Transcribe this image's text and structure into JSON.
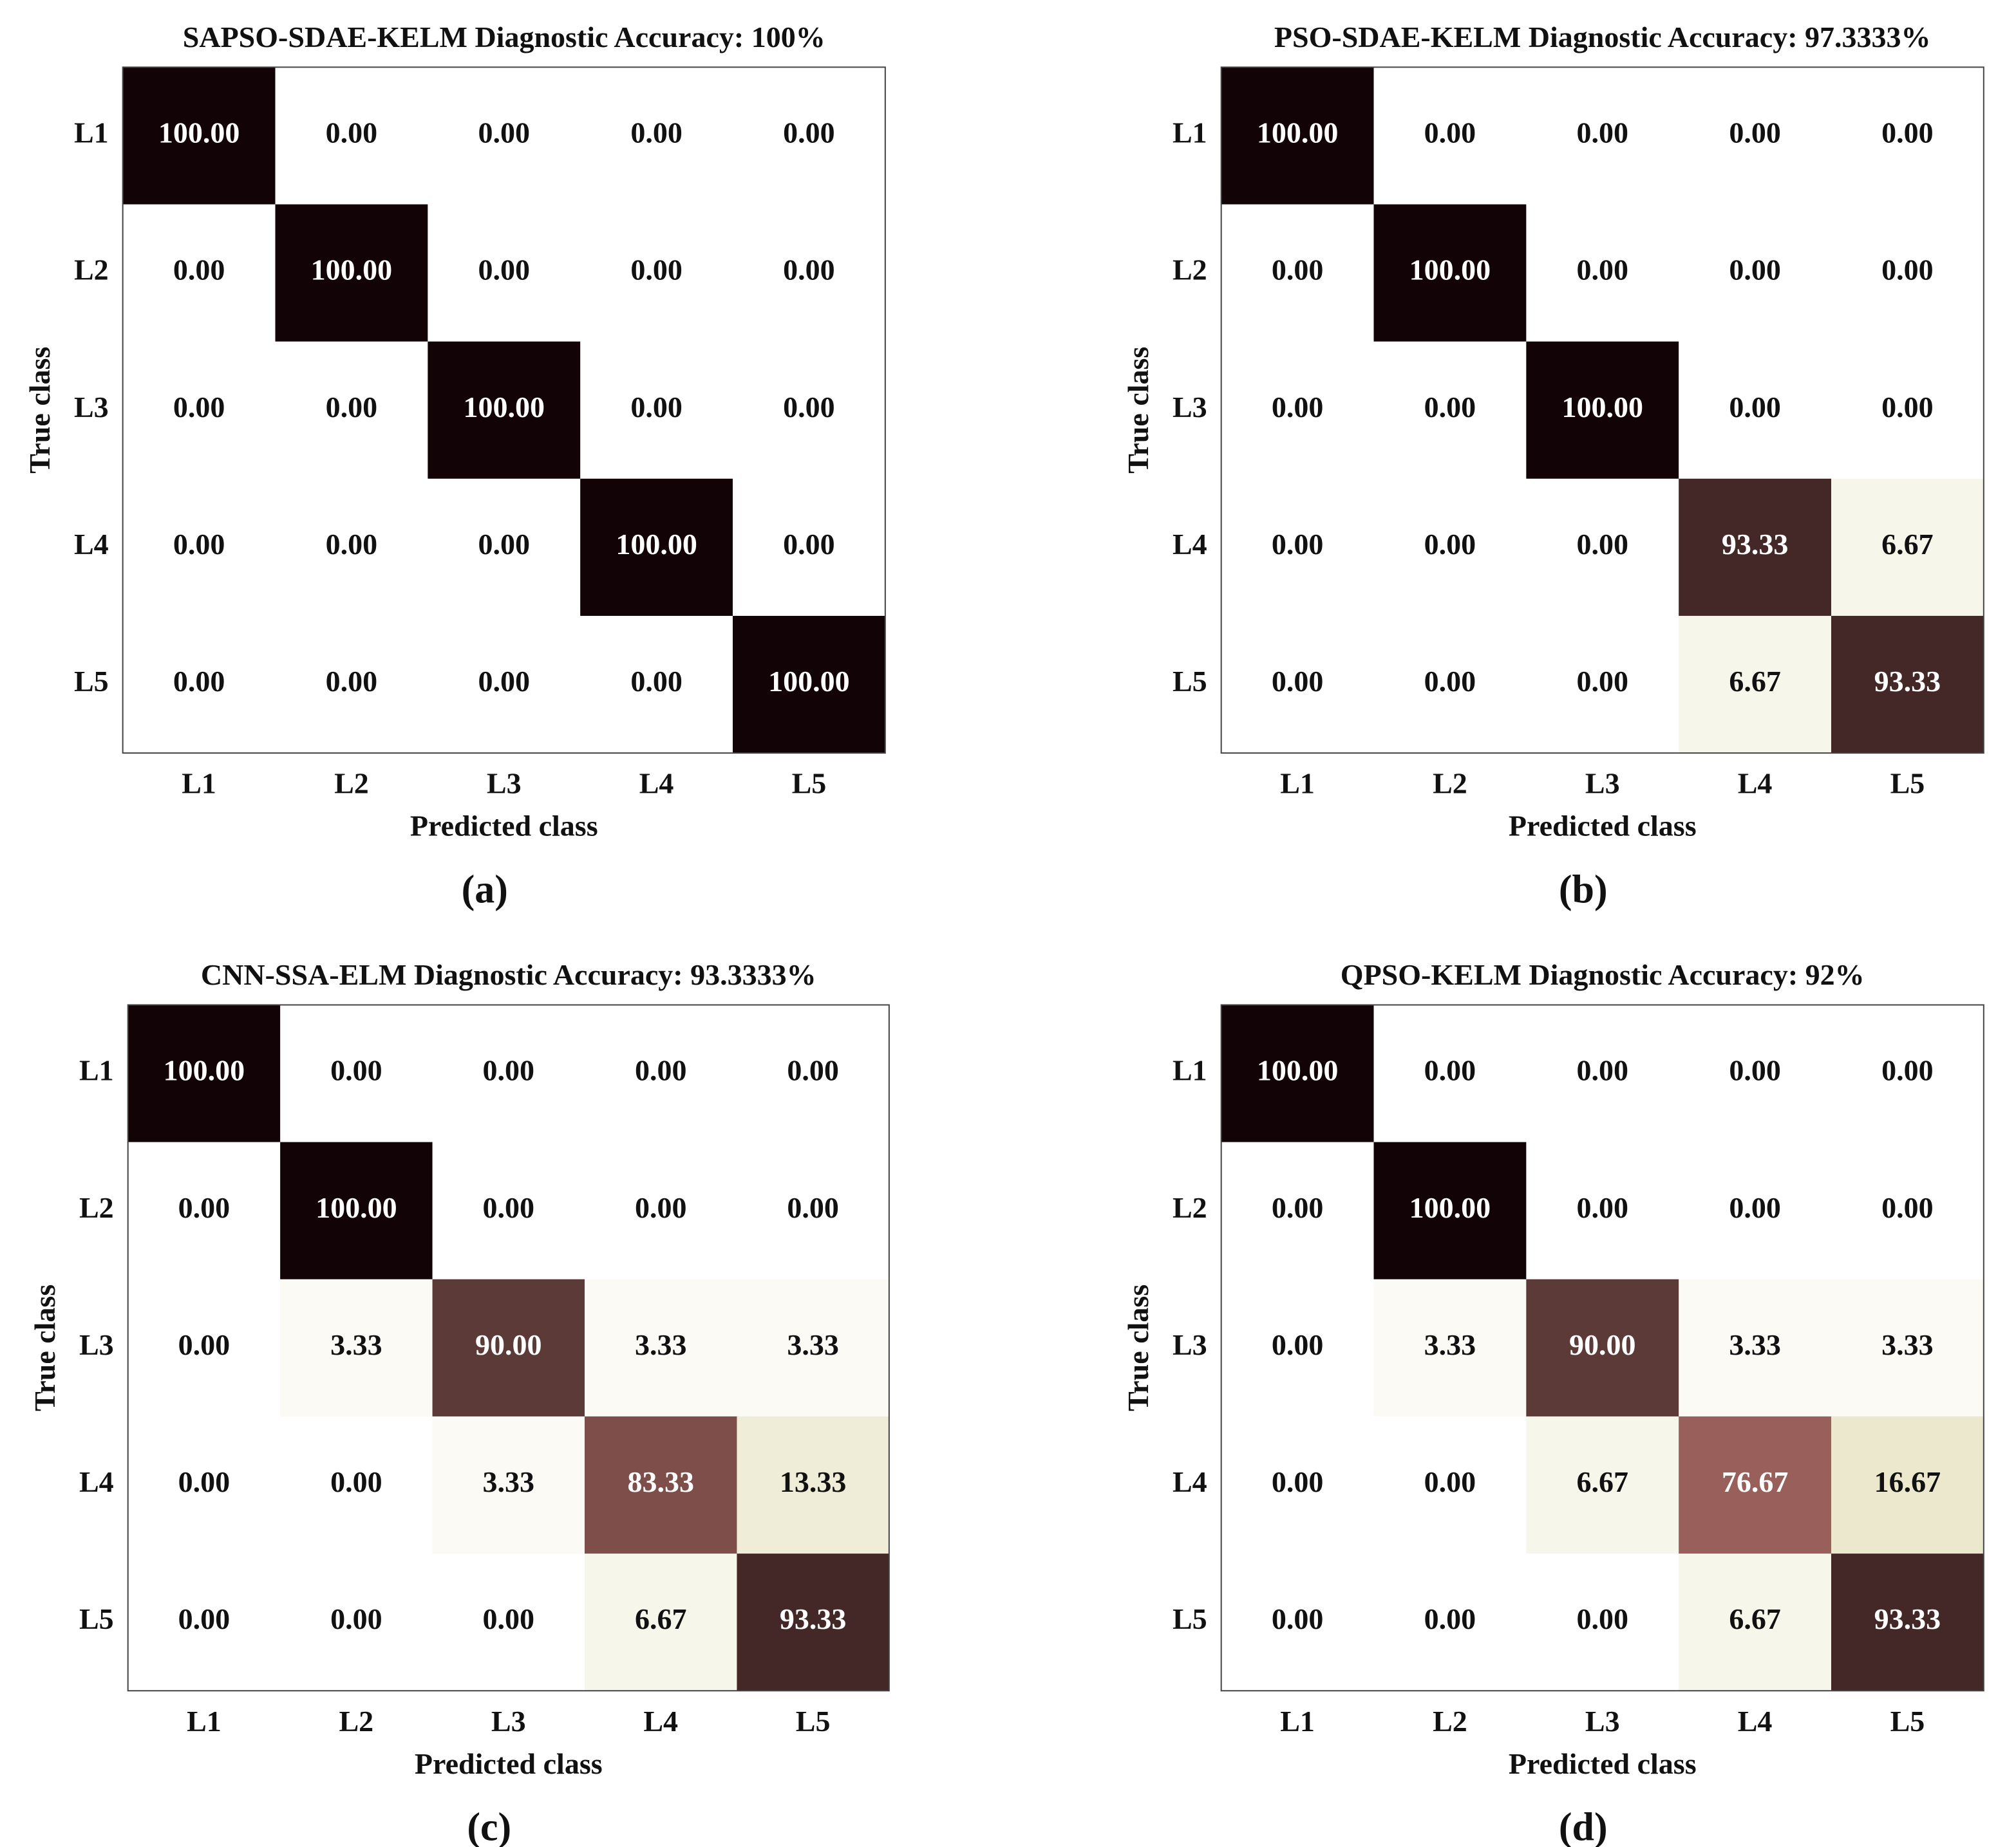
{
  "chart_data": [
    {
      "type": "heatmap",
      "title": "SAPSO-SDAE-KELM Diagnostic Accuracy: 100%",
      "caption": "(a)",
      "xlabel": "Predicted class",
      "ylabel": "True class",
      "x_categories": [
        "L1",
        "L2",
        "L3",
        "L4",
        "L5"
      ],
      "y_categories": [
        "L1",
        "L2",
        "L3",
        "L4",
        "L5"
      ],
      "values": [
        [
          100,
          0,
          0,
          0,
          0
        ],
        [
          0,
          100,
          0,
          0,
          0
        ],
        [
          0,
          0,
          100,
          0,
          0
        ],
        [
          0,
          0,
          0,
          100,
          0
        ],
        [
          0,
          0,
          0,
          0,
          100
        ]
      ],
      "value_labels": [
        [
          "100.00",
          "0.00",
          "0.00",
          "0.00",
          "0.00"
        ],
        [
          "0.00",
          "100.00",
          "0.00",
          "0.00",
          "0.00"
        ],
        [
          "0.00",
          "0.00",
          "100.00",
          "0.00",
          "0.00"
        ],
        [
          "0.00",
          "0.00",
          "0.00",
          "100.00",
          "0.00"
        ],
        [
          "0.00",
          "0.00",
          "0.00",
          "0.00",
          "100.00"
        ]
      ],
      "clim": [
        0,
        100
      ],
      "colormap": [
        "#ffffff",
        "#f2f1df",
        "#e8e4c6",
        "#dccfae",
        "#d2b79d",
        "#c99c8c",
        "#bd8478",
        "#b0706a",
        "#8e5854",
        "#5c3a37",
        "#120406"
      ]
    },
    {
      "type": "heatmap",
      "title": "PSO-SDAE-KELM Diagnostic Accuracy: 97.3333%",
      "caption": "(b)",
      "xlabel": "Predicted class",
      "ylabel": "True class",
      "x_categories": [
        "L1",
        "L2",
        "L3",
        "L4",
        "L5"
      ],
      "y_categories": [
        "L1",
        "L2",
        "L3",
        "L4",
        "L5"
      ],
      "values": [
        [
          100,
          0,
          0,
          0,
          0
        ],
        [
          0,
          100,
          0,
          0,
          0
        ],
        [
          0,
          0,
          100,
          0,
          0
        ],
        [
          0,
          0,
          0,
          93.33,
          6.67
        ],
        [
          0,
          0,
          0,
          6.67,
          93.33
        ]
      ],
      "value_labels": [
        [
          "100.00",
          "0.00",
          "0.00",
          "0.00",
          "0.00"
        ],
        [
          "0.00",
          "100.00",
          "0.00",
          "0.00",
          "0.00"
        ],
        [
          "0.00",
          "0.00",
          "100.00",
          "0.00",
          "0.00"
        ],
        [
          "0.00",
          "0.00",
          "0.00",
          "93.33",
          "6.67"
        ],
        [
          "0.00",
          "0.00",
          "0.00",
          "6.67",
          "93.33"
        ]
      ],
      "clim": [
        0,
        100
      ],
      "colormap": [
        "#ffffff",
        "#f2f1df",
        "#e8e4c6",
        "#dccfae",
        "#d2b79d",
        "#c99c8c",
        "#bd8478",
        "#b0706a",
        "#8e5854",
        "#5c3a37",
        "#120406"
      ]
    },
    {
      "type": "heatmap",
      "title": "CNN-SSA-ELM Diagnostic Accuracy: 93.3333%",
      "caption": "(c)",
      "xlabel": "Predicted class",
      "ylabel": "True class",
      "x_categories": [
        "L1",
        "L2",
        "L3",
        "L4",
        "L5"
      ],
      "y_categories": [
        "L1",
        "L2",
        "L3",
        "L4",
        "L5"
      ],
      "values": [
        [
          100,
          0,
          0,
          0,
          0
        ],
        [
          0,
          100,
          0,
          0,
          0
        ],
        [
          0,
          3.33,
          90,
          3.33,
          3.33
        ],
        [
          0,
          0,
          3.33,
          83.33,
          13.33
        ],
        [
          0,
          0,
          0,
          6.67,
          93.33
        ]
      ],
      "value_labels": [
        [
          "100.00",
          "0.00",
          "0.00",
          "0.00",
          "0.00"
        ],
        [
          "0.00",
          "100.00",
          "0.00",
          "0.00",
          "0.00"
        ],
        [
          "0.00",
          "3.33",
          "90.00",
          "3.33",
          "3.33"
        ],
        [
          "0.00",
          "0.00",
          "3.33",
          "83.33",
          "13.33"
        ],
        [
          "0.00",
          "0.00",
          "0.00",
          "6.67",
          "93.33"
        ]
      ],
      "clim": [
        0,
        100
      ],
      "colormap": [
        "#ffffff",
        "#f2f1df",
        "#e8e4c6",
        "#dccfae",
        "#d2b79d",
        "#c99c8c",
        "#bd8478",
        "#b0706a",
        "#8e5854",
        "#5c3a37",
        "#120406"
      ]
    },
    {
      "type": "heatmap",
      "title": "QPSO-KELM Diagnostic Accuracy: 92%",
      "caption": "(d)",
      "xlabel": "Predicted class",
      "ylabel": "True class",
      "x_categories": [
        "L1",
        "L2",
        "L3",
        "L4",
        "L5"
      ],
      "y_categories": [
        "L1",
        "L2",
        "L3",
        "L4",
        "L5"
      ],
      "values": [
        [
          100,
          0,
          0,
          0,
          0
        ],
        [
          0,
          100,
          0,
          0,
          0
        ],
        [
          0,
          3.33,
          90,
          3.33,
          3.33
        ],
        [
          0,
          0,
          6.67,
          76.67,
          16.67
        ],
        [
          0,
          0,
          0,
          6.67,
          93.33
        ]
      ],
      "value_labels": [
        [
          "100.00",
          "0.00",
          "0.00",
          "0.00",
          "0.00"
        ],
        [
          "0.00",
          "100.00",
          "0.00",
          "0.00",
          "0.00"
        ],
        [
          "0.00",
          "3.33",
          "90.00",
          "3.33",
          "3.33"
        ],
        [
          "0.00",
          "0.00",
          "6.67",
          "76.67",
          "16.67"
        ],
        [
          "0.00",
          "0.00",
          "0.00",
          "6.67",
          "93.33"
        ]
      ],
      "clim": [
        0,
        100
      ],
      "colormap": [
        "#ffffff",
        "#f2f1df",
        "#e8e4c6",
        "#dccfae",
        "#d2b79d",
        "#c99c8c",
        "#bd8478",
        "#b0706a",
        "#8e5854",
        "#5c3a37",
        "#120406"
      ]
    }
  ]
}
